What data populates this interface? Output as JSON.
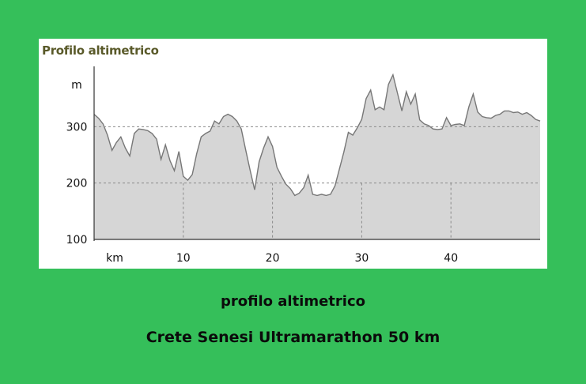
{
  "chart_data": {
    "type": "area",
    "title": "Profilo altimetrico",
    "ylabel": "m",
    "xlabel": "km",
    "xlim": [
      0,
      50
    ],
    "ylim": [
      100,
      400
    ],
    "x_ticks": [
      "10",
      "20",
      "30",
      "40"
    ],
    "y_ticks": [
      "300",
      "200",
      "100"
    ],
    "grid": "dashed",
    "fill_color": "#d6d6d6",
    "line_color": "#777777",
    "series": [
      {
        "x": [
          0,
          0.5,
          1,
          1.5,
          2,
          2.5,
          3,
          3.5,
          4,
          4.5,
          5,
          5.5,
          6,
          6.5,
          7,
          7.5,
          8,
          8.5,
          9,
          9.5,
          10,
          10.5,
          11,
          11.5,
          12,
          12.5,
          13,
          13.5,
          14,
          14.5,
          15,
          15.5,
          16,
          16.5,
          17,
          17.5,
          18,
          18.5,
          19,
          19.5,
          20,
          20.5,
          21,
          21.5,
          22,
          22.5,
          23,
          23.5,
          24,
          24.5,
          25,
          25.5,
          26,
          26.5,
          27,
          27.5,
          28,
          28.5,
          29,
          29.5,
          30,
          30.5,
          31,
          31.5,
          32,
          32.5,
          33,
          33.5,
          34,
          34.5,
          35,
          35.5,
          36,
          36.5,
          37,
          37.5,
          38,
          38.5,
          39,
          39.5,
          40,
          40.5,
          41,
          41.5,
          42,
          42.5,
          43,
          43.5,
          44,
          44.5,
          45,
          45.5,
          46,
          46.5,
          47,
          47.5,
          48,
          48.5,
          49,
          49.5,
          50
        ],
        "y": [
          322,
          315,
          305,
          285,
          258,
          272,
          282,
          262,
          248,
          288,
          296,
          295,
          293,
          288,
          278,
          242,
          268,
          240,
          222,
          256,
          212,
          205,
          215,
          252,
          282,
          288,
          292,
          310,
          305,
          318,
          322,
          318,
          310,
          296,
          258,
          222,
          188,
          238,
          262,
          282,
          265,
          228,
          212,
          198,
          190,
          178,
          182,
          192,
          214,
          180,
          178,
          180,
          178,
          180,
          195,
          225,
          255,
          290,
          285,
          298,
          313,
          350,
          365,
          330,
          335,
          330,
          375,
          392,
          360,
          328,
          362,
          340,
          358,
          312,
          305,
          302,
          296,
          295,
          296,
          316,
          302,
          304,
          305,
          302,
          335,
          358,
          326,
          318,
          316,
          315,
          320,
          322,
          328,
          328,
          325,
          326,
          322,
          325,
          320,
          313,
          310
        ]
      }
    ]
  },
  "captions": {
    "line1": "profilo altimetrico",
    "line2": "Crete Senesi Ultramarathon 50 km"
  }
}
